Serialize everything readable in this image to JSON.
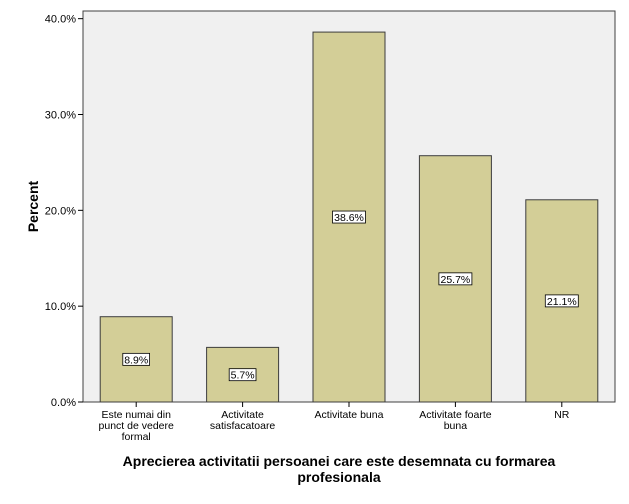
{
  "chart_data": {
    "type": "bar",
    "categories": [
      [
        "Este numai din",
        "punct de vedere",
        "formal"
      ],
      [
        "Activitate",
        "satisfacatoare"
      ],
      [
        "Activitate buna"
      ],
      [
        "Activitate foarte",
        "buna"
      ],
      [
        "NR"
      ]
    ],
    "values": [
      8.9,
      5.7,
      38.6,
      25.7,
      21.1
    ],
    "data_labels": [
      "8.9%",
      "5.7%",
      "38.6%",
      "25.7%",
      "21.1%"
    ],
    "yticks": [
      0,
      10,
      20,
      30,
      40
    ],
    "ytick_labels": [
      "0.0%",
      "10.0%",
      "20.0%",
      "30.0%",
      "40.0%"
    ],
    "ylim": [
      0,
      40.8
    ],
    "ylabel": "Percent",
    "xlabel": [
      "Aprecierea activitatii persoanei care este desemnata cu formarea",
      "profesionala"
    ],
    "grid": false,
    "legend": "none",
    "colors": {
      "plot_background": "#f0f0f0",
      "bar_fill": "#d3ce97",
      "bar_stroke": "#3c3c3c",
      "frame": "#404040"
    }
  }
}
